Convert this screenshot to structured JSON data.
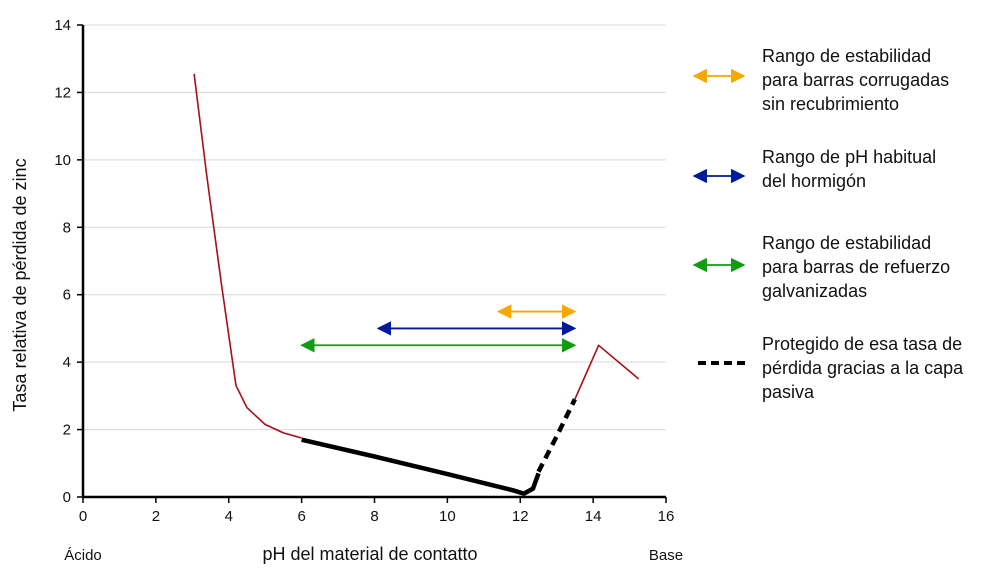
{
  "chart_data": {
    "type": "line",
    "xlabel": "pH del material de contatto",
    "ylabel": "Tasa relativa de pérdida de zinc",
    "x_left_label": "Ácido",
    "x_right_label": "Base",
    "xlim": [
      0,
      16
    ],
    "ylim": [
      0,
      14
    ],
    "xticks": [
      0,
      2,
      4,
      6,
      8,
      10,
      12,
      14,
      16
    ],
    "yticks": [
      0,
      2,
      4,
      6,
      8,
      10,
      12,
      14
    ],
    "grid": "horizontal",
    "legend_position": "right",
    "colors": {
      "curve": "#a50f15",
      "protected": "#000000",
      "uncoated_range": "#f5a800",
      "concrete_range": "#001a99",
      "galvanized_range": "#129c12"
    },
    "series": [
      {
        "key": "loss_curve_acid",
        "style": "thin-red",
        "points": [
          [
            3.05,
            12.55
          ],
          [
            3.4,
            9.5
          ],
          [
            3.8,
            6.3
          ],
          [
            4.2,
            3.3
          ],
          [
            4.5,
            2.65
          ],
          [
            5.0,
            2.15
          ],
          [
            5.5,
            1.9
          ],
          [
            6.0,
            1.75
          ]
        ]
      },
      {
        "key": "passive_solid",
        "style": "thick-black",
        "points": [
          [
            6.0,
            1.7
          ],
          [
            8.0,
            1.2
          ],
          [
            10.0,
            0.68
          ],
          [
            11.8,
            0.2
          ],
          [
            12.1,
            0.1
          ],
          [
            12.35,
            0.25
          ],
          [
            12.5,
            0.7
          ]
        ]
      },
      {
        "key": "passive_dashed",
        "style": "dashed-black",
        "points": [
          [
            12.5,
            0.75
          ],
          [
            13.0,
            1.8
          ],
          [
            13.5,
            2.9
          ]
        ]
      },
      {
        "key": "loss_curve_base",
        "style": "thin-red",
        "points": [
          [
            13.5,
            2.9
          ],
          [
            14.15,
            4.5
          ],
          [
            15.25,
            3.5
          ]
        ]
      }
    ],
    "ranges": [
      {
        "key": "uncoated",
        "x": [
          11.4,
          13.5
        ],
        "y": 5.5
      },
      {
        "key": "concrete",
        "x": [
          8.1,
          13.5
        ],
        "y": 5.0
      },
      {
        "key": "galvanized",
        "x": [
          6.0,
          13.5
        ],
        "y": 4.5
      }
    ],
    "legend": [
      {
        "key": "uncoated",
        "lines": [
          "Rango de estabilidad",
          "para barras corrugadas",
          "sin recubrimiento"
        ]
      },
      {
        "key": "concrete",
        "lines": [
          "Rango de pH habitual",
          "del hormigón"
        ]
      },
      {
        "key": "galvanized",
        "lines": [
          "Rango de estabilidad",
          "para barras de refuerzo",
          "galvanizadas"
        ]
      },
      {
        "key": "protected",
        "lines": [
          "Protegido de esa tasa de",
          "pérdida gracias a la capa",
          "pasiva"
        ]
      }
    ]
  }
}
